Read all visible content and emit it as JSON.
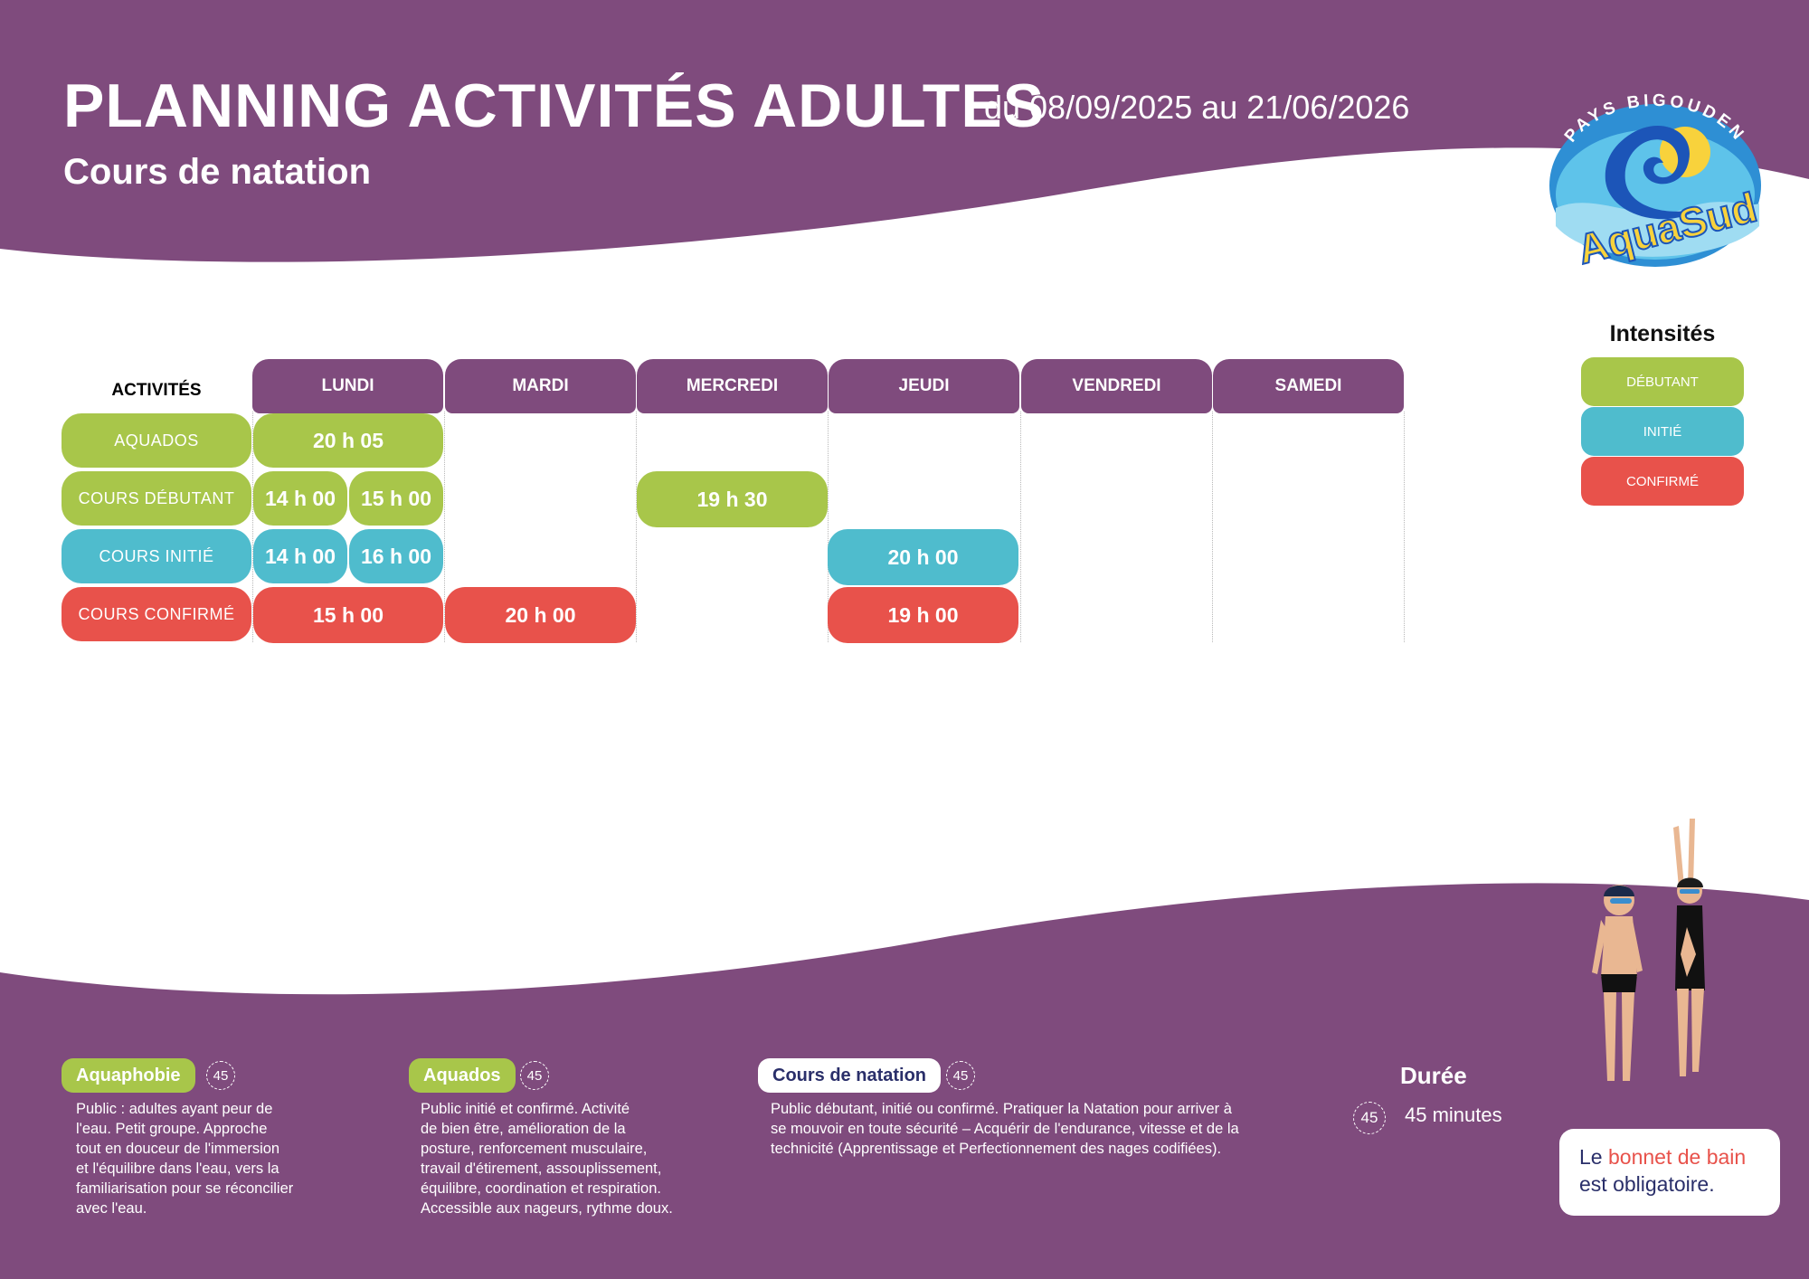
{
  "header": {
    "title": "PLANNING ACTIVITÉS ADULTES",
    "dates": "- du 08/09/2025 au 21/06/2026",
    "subtitle": "Cours de natation"
  },
  "logo": {
    "top_text": "PAYS BIGOUDEN",
    "brand": "AquaSud"
  },
  "schedule": {
    "activities_header": "ACTIVITÉS",
    "days": [
      "LUNDI",
      "MARDI",
      "MERCREDI",
      "JEUDI",
      "VENDREDI",
      "SAMEDI"
    ],
    "rows": [
      {
        "label": "AQUADOS",
        "level": "débutant",
        "slots": {
          "lundi": [
            "20 h 05"
          ]
        }
      },
      {
        "label": "COURS DÉBUTANT",
        "level": "débutant",
        "slots": {
          "lundi": [
            "14 h 00",
            "15 h 00"
          ],
          "mercredi": [
            "19 h 30"
          ]
        }
      },
      {
        "label": "COURS INITIÉ",
        "level": "initié",
        "slots": {
          "lundi": [
            "14 h 00",
            "16 h 00"
          ],
          "jeudi": [
            "20 h 00"
          ]
        }
      },
      {
        "label": "COURS CONFIRMÉ",
        "level": "confirmé",
        "slots": {
          "lundi": [
            "15 h 00"
          ],
          "mardi": [
            "20 h 00"
          ],
          "jeudi": [
            "19 h 00"
          ]
        }
      }
    ]
  },
  "intensities": {
    "title": "Intensités",
    "items": [
      "DÉBUTANT",
      "INITIÉ",
      "CONFIRMÉ"
    ]
  },
  "colors": {
    "purple": "#7f4b7d",
    "debutant": "#a8c64a",
    "initie": "#4fbccd",
    "confirme": "#e8524b"
  },
  "footer": {
    "blocks": [
      {
        "tag": "Aquaphobie",
        "duration": "45",
        "lines": [
          "Public : adultes ayant peur de",
          "l'eau. Petit groupe. Approche",
          "tout en douceur de l'immersion",
          "et l'équilibre dans l'eau, vers la",
          "familiarisation pour se réconcilier",
          "avec l'eau."
        ]
      },
      {
        "tag": "Aquados",
        "duration": "45",
        "lines": [
          "Public initié et confirmé. Activité",
          "de bien être, amélioration de la",
          "posture, renforcement musculaire,",
          "travail d'étirement, assouplissement,",
          "équilibre, coordination et respiration.",
          "Accessible aux nageurs, rythme doux."
        ]
      },
      {
        "tag": "Cours de natation",
        "duration": "45",
        "lines": [
          "Public débutant, initié ou confirmé. Pratiquer la Natation pour arriver à",
          "se mouvoir en toute sécurité – Acquérir de l'endurance, vitesse et de la",
          "technicité (Apprentissage et Perfectionnement des nages codifiées)."
        ]
      }
    ],
    "duree": {
      "title": "Durée",
      "icon_value": "45",
      "value": "45 minutes"
    },
    "bonnet": {
      "part1": "Le ",
      "part2": "bonnet de bain",
      "part3": "est obligatoire."
    }
  }
}
